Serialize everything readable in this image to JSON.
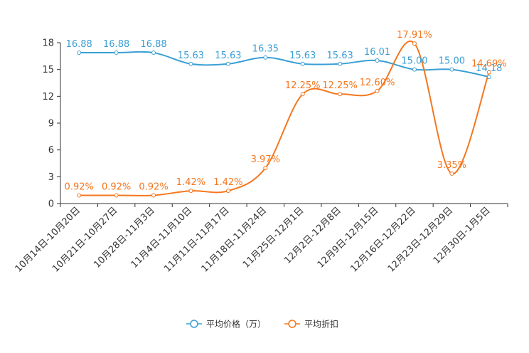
{
  "chart_data": {
    "type": "line",
    "title": "",
    "xlabel": "",
    "ylabel": "",
    "ylim": [
      0,
      18
    ],
    "yticks": [
      0,
      3,
      6,
      9,
      12,
      15,
      18
    ],
    "categories": [
      "10月14日-10月20日",
      "10月21日-10月27日",
      "10月28日-11月3日",
      "11月4日-11月10日",
      "11月11日-11月17日",
      "11月18日-11月24日",
      "11月25日-12月1日",
      "12月2日-12月8日",
      "12月9日-12月15日",
      "12月16日-12月22日",
      "12月23日-12月29日",
      "12月30日-1月5日"
    ],
    "series": [
      {
        "name": "平均价格（万）",
        "color": "#3a9fd4",
        "values": [
          16.88,
          16.88,
          16.88,
          15.63,
          15.63,
          16.35,
          15.63,
          15.63,
          16.01,
          15.0,
          15.0,
          14.18
        ],
        "labels": [
          "16.88",
          "16.88",
          "16.88",
          "15.63",
          "15.63",
          "16.35",
          "15.63",
          "15.63",
          "16.01",
          "15.00",
          "15.00",
          "14.18"
        ]
      },
      {
        "name": "平均折扣",
        "color": "#f5761d",
        "values": [
          0.92,
          0.92,
          0.92,
          1.42,
          1.42,
          3.97,
          12.25,
          12.25,
          12.6,
          17.91,
          3.35,
          14.69
        ],
        "labels": [
          "0.92%",
          "0.92%",
          "0.92%",
          "1.42%",
          "1.42%",
          "3.97%",
          "12.25%",
          "12.25%",
          "12.60%",
          "17.91%",
          "3.35%",
          "14.69%"
        ]
      }
    ],
    "legend": {
      "position": "bottom-center",
      "items": [
        "平均价格（万）",
        "平均折扣"
      ]
    }
  }
}
